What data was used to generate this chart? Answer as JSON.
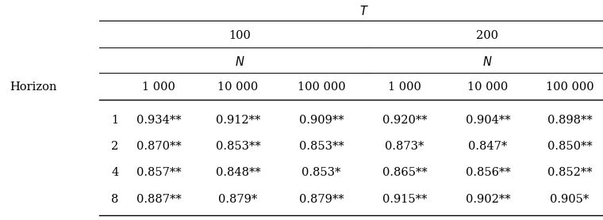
{
  "title_T": "$T$",
  "col_group_labels": [
    "100",
    "200"
  ],
  "col_subgroup_label": "$N$",
  "row_header": "Horizon",
  "col_labels": [
    "1 000",
    "10 000",
    "100 000",
    "1 000",
    "10 000",
    "100 000"
  ],
  "row_labels": [
    "1",
    "2",
    "4",
    "8"
  ],
  "data": [
    [
      "0.934**",
      "0.912**",
      "0.909**",
      "0.920**",
      "0.904**",
      "0.898**"
    ],
    [
      "0.870**",
      "0.853**",
      "0.853**",
      "0.873*",
      "0.847*",
      "0.850**"
    ],
    [
      "0.857**",
      "0.848**",
      "0.853*",
      "0.865**",
      "0.856**",
      "0.852**"
    ],
    [
      "0.887**",
      "0.879*",
      "0.879**",
      "0.915**",
      "0.902**",
      "0.905*"
    ]
  ],
  "fig_width": 7.6,
  "fig_height": 2.78,
  "dpi": 100,
  "font_size": 10.5
}
